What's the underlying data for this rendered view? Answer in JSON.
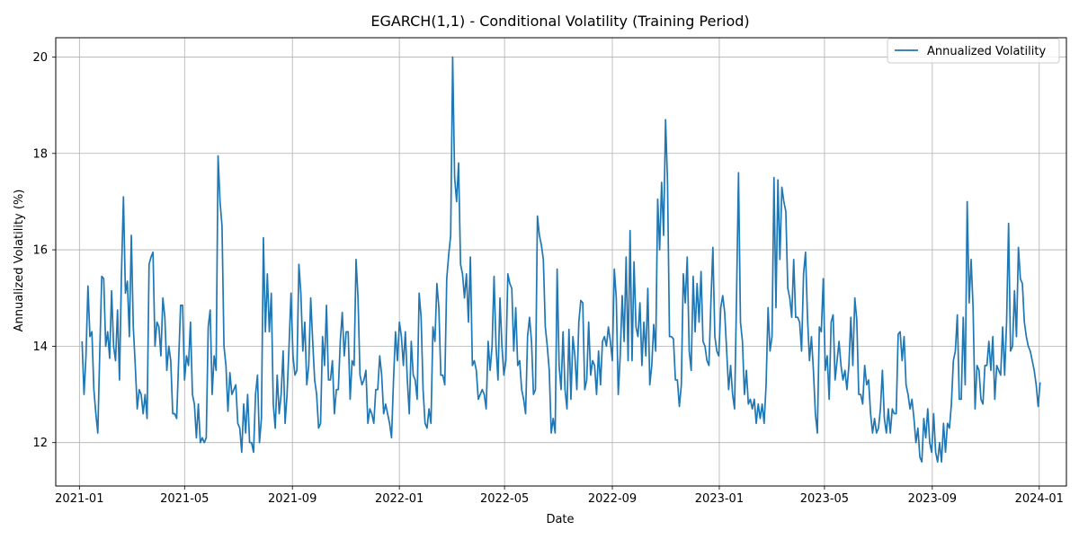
{
  "chart_data": {
    "type": "line",
    "title": "EGARCH(1,1) - Conditional Volatility (Training Period)",
    "xlabel": "Date",
    "ylabel": "Annualized Volatility (%)",
    "x_start": "2021-01-04",
    "x_end": "2024-01-02",
    "xlim": [
      "2020-12-05",
      "2024-02-01"
    ],
    "ylim": [
      11.1,
      20.4
    ],
    "x_ticks": [
      "2021-01",
      "2021-05",
      "2021-09",
      "2022-01",
      "2022-05",
      "2022-09",
      "2023-01",
      "2023-05",
      "2023-09",
      "2024-01"
    ],
    "y_ticks": [
      12,
      14,
      16,
      18,
      20
    ],
    "grid": true,
    "legend_position": "top-right",
    "series": [
      {
        "name": "Annualized Volatility",
        "color": "#1f77b4",
        "values": [
          14.1,
          13.0,
          13.8,
          15.25,
          14.2,
          14.3,
          13.1,
          12.6,
          12.2,
          13.9,
          15.45,
          15.4,
          14.0,
          14.3,
          13.75,
          15.15,
          14.0,
          13.7,
          14.75,
          13.3,
          15.5,
          17.1,
          15.1,
          15.35,
          14.2,
          16.3,
          14.4,
          13.6,
          12.7,
          13.1,
          13.0,
          12.6,
          13.0,
          12.5,
          15.7,
          15.85,
          15.95,
          14.0,
          14.5,
          14.4,
          13.8,
          15.0,
          14.6,
          13.5,
          14.0,
          13.7,
          12.6,
          12.6,
          12.5,
          13.7,
          14.85,
          14.85,
          13.3,
          13.8,
          13.6,
          14.5,
          13.0,
          12.8,
          12.1,
          12.8,
          12.0,
          12.1,
          12.0,
          12.1,
          14.4,
          14.75,
          13.0,
          13.8,
          13.5,
          17.95,
          17.0,
          16.5,
          14.0,
          13.6,
          12.65,
          13.45,
          13.0,
          13.1,
          13.2,
          12.4,
          12.3,
          11.8,
          12.8,
          12.2,
          13.0,
          12.0,
          12.0,
          11.8,
          13.0,
          13.4,
          12.0,
          12.5,
          16.25,
          14.3,
          15.5,
          14.3,
          15.1,
          12.8,
          12.3,
          13.4,
          12.6,
          13.0,
          13.9,
          12.4,
          13.0,
          14.0,
          15.1,
          13.8,
          13.4,
          13.5,
          15.7,
          15.1,
          13.9,
          14.5,
          13.2,
          13.6,
          15.0,
          14.1,
          13.3,
          13.0,
          12.3,
          12.4,
          14.2,
          13.6,
          14.85,
          13.3,
          13.3,
          13.7,
          12.6,
          13.1,
          13.1,
          14.1,
          14.7,
          13.8,
          14.3,
          14.3,
          12.9,
          13.7,
          13.6,
          15.8,
          15.0,
          13.4,
          13.2,
          13.3,
          13.5,
          12.4,
          12.7,
          12.6,
          12.4,
          13.1,
          13.1,
          13.8,
          13.4,
          12.6,
          12.8,
          12.6,
          12.4,
          12.1,
          13.3,
          14.3,
          13.7,
          14.5,
          14.2,
          13.6,
          14.3,
          13.3,
          12.6,
          14.1,
          13.4,
          13.3,
          12.9,
          15.1,
          14.6,
          13.1,
          12.4,
          12.3,
          12.7,
          12.4,
          14.4,
          14.1,
          15.3,
          14.8,
          13.4,
          13.4,
          13.2,
          15.4,
          15.9,
          16.3,
          20.0,
          17.5,
          17.0,
          17.8,
          15.7,
          15.5,
          15.0,
          15.5,
          14.5,
          15.85,
          13.6,
          13.7,
          13.5,
          12.9,
          13.0,
          13.1,
          13.0,
          12.7,
          14.1,
          13.5,
          14.0,
          15.45,
          14.0,
          13.3,
          15.0,
          14.0,
          13.4,
          13.7,
          15.5,
          15.3,
          15.2,
          13.9,
          14.8,
          13.6,
          13.7,
          13.1,
          12.9,
          12.6,
          14.2,
          14.6,
          14.1,
          13.0,
          13.1,
          16.7,
          16.3,
          16.1,
          15.8,
          14.4,
          14.0,
          13.5,
          12.2,
          12.5,
          12.2,
          15.6,
          13.6,
          13.1,
          14.3,
          13.1,
          12.7,
          14.35,
          12.9,
          14.2,
          13.8,
          13.1,
          14.5,
          14.95,
          14.9,
          13.1,
          13.3,
          14.5,
          13.4,
          13.7,
          13.6,
          13.0,
          13.9,
          13.2,
          14.1,
          14.2,
          14.0,
          14.4,
          14.1,
          13.7,
          15.6,
          15.0,
          13.0,
          13.8,
          15.05,
          14.1,
          15.85,
          13.7,
          16.4,
          13.7,
          15.75,
          14.4,
          14.2,
          14.9,
          13.6,
          14.5,
          13.8,
          15.2,
          13.2,
          13.6,
          14.45,
          13.9,
          17.05,
          16.0,
          17.4,
          16.3,
          18.7,
          17.4,
          14.2,
          14.2,
          14.15,
          13.3,
          13.3,
          12.75,
          13.2,
          15.5,
          14.9,
          15.85,
          13.9,
          13.5,
          15.45,
          14.3,
          15.3,
          14.5,
          15.55,
          14.1,
          14.0,
          13.7,
          13.6,
          14.9,
          16.05,
          14.2,
          13.9,
          13.8,
          14.8,
          15.05,
          14.7,
          13.9,
          13.1,
          13.6,
          13.0,
          12.7,
          15.0,
          17.6,
          14.5,
          14.1,
          13.0,
          13.5,
          12.8,
          12.9,
          12.7,
          12.9,
          12.4,
          12.8,
          12.5,
          12.8,
          12.4,
          13.2,
          14.8,
          13.9,
          14.2,
          17.5,
          14.8,
          17.45,
          15.8,
          17.3,
          17.0,
          16.8,
          15.2,
          15.0,
          14.6,
          15.8,
          14.6,
          14.6,
          14.5,
          13.9,
          15.5,
          15.95,
          14.6,
          13.7,
          14.2,
          13.5,
          12.6,
          12.2,
          14.4,
          14.3,
          15.4,
          13.5,
          13.8,
          12.9,
          14.5,
          14.65,
          13.3,
          13.7,
          14.1,
          13.6,
          13.3,
          13.5,
          13.1,
          13.6,
          14.6,
          13.6,
          15.0,
          14.55,
          13.0,
          13.0,
          12.8,
          13.6,
          13.2,
          13.3,
          12.6,
          12.2,
          12.5,
          12.2,
          12.3,
          12.7,
          13.5,
          12.5,
          12.2,
          12.7,
          12.2,
          12.7,
          12.6,
          12.6,
          14.25,
          14.3,
          13.7,
          14.2,
          13.2,
          13.0,
          12.7,
          12.9,
          12.5,
          12.0,
          12.3,
          11.7,
          11.6,
          12.5,
          12.1,
          12.7,
          12.0,
          11.8,
          12.6,
          11.8,
          11.6,
          12.0,
          11.6,
          12.4,
          11.8,
          12.4,
          12.3,
          12.8,
          13.7,
          13.9,
          14.65,
          12.9,
          12.9,
          14.6,
          13.2,
          17.0,
          14.9,
          15.8,
          14.8,
          12.7,
          13.6,
          13.5,
          12.9,
          12.8,
          13.6,
          13.6,
          14.1,
          13.5,
          14.2,
          12.9,
          13.6,
          13.5,
          13.4,
          14.4,
          13.4,
          14.5,
          16.55,
          13.9,
          14.0,
          15.15,
          14.2,
          16.05,
          15.4,
          15.3,
          14.5,
          14.2,
          14.0,
          13.9,
          13.7,
          13.5,
          13.2,
          12.75,
          13.25
        ]
      }
    ]
  }
}
